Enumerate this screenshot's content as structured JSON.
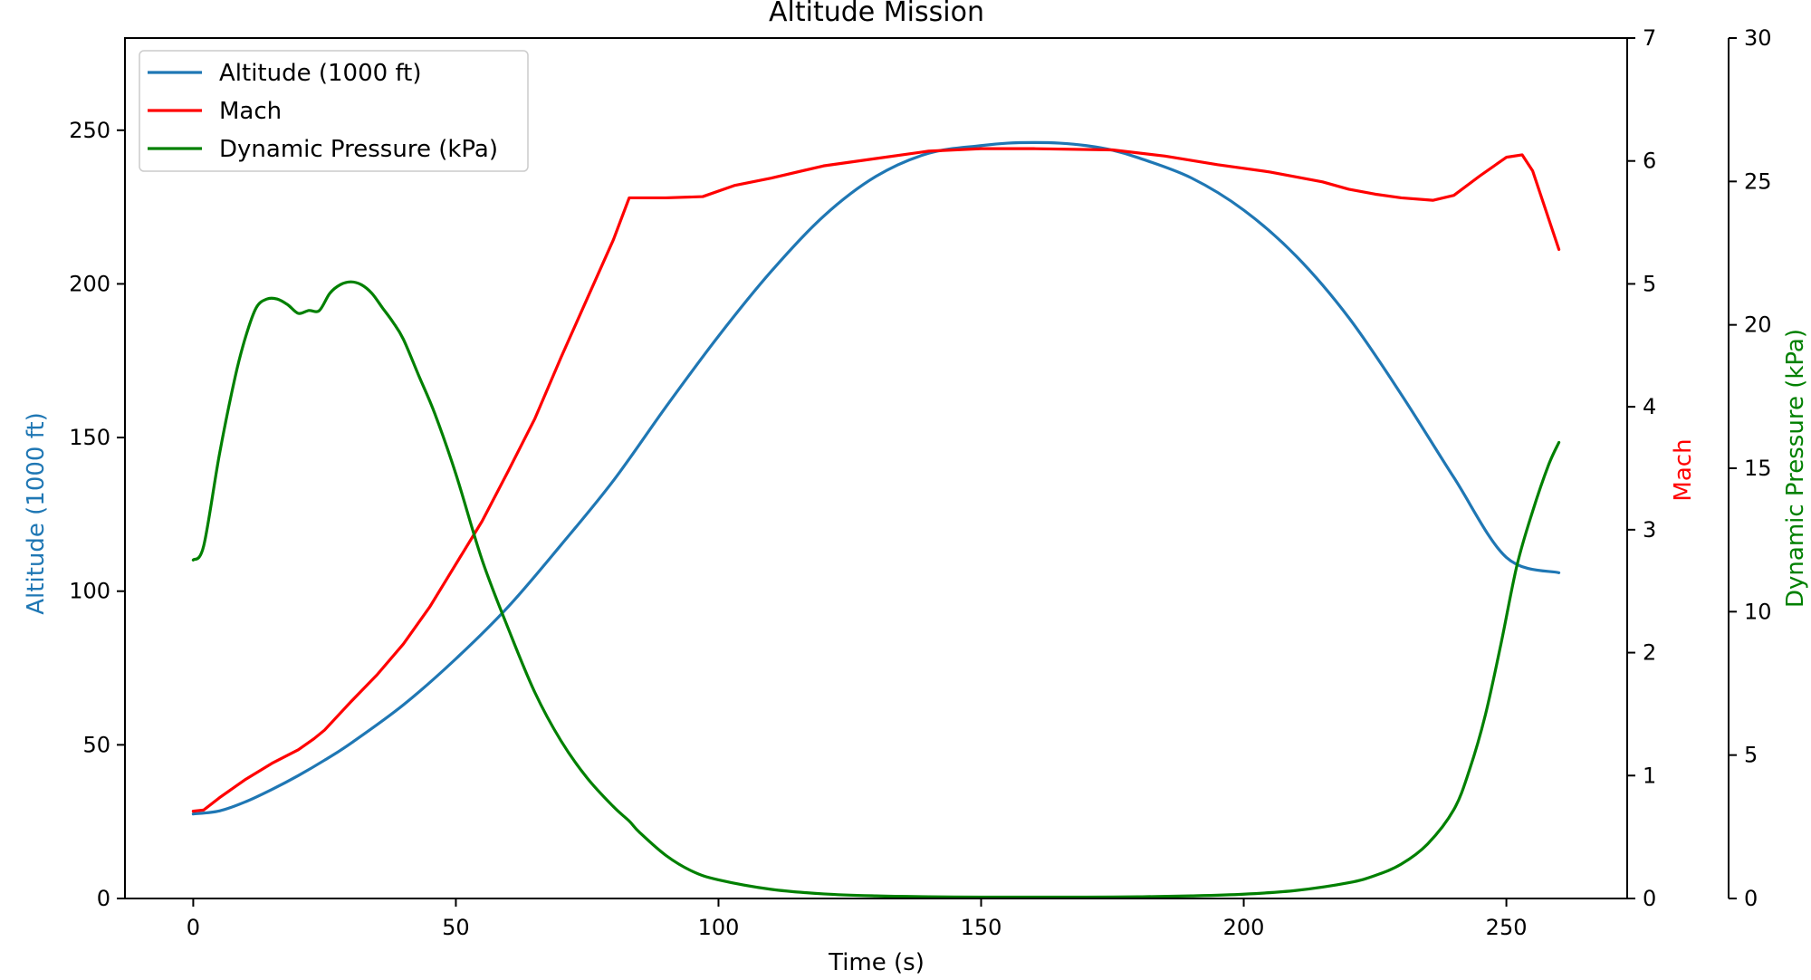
{
  "chart_data": {
    "type": "line",
    "title": "Altitude Mission",
    "xlabel": "Time (s)",
    "xlim": [
      -13,
      273
    ],
    "xticks": [
      0,
      50,
      100,
      150,
      200,
      250
    ],
    "axes": {
      "left": {
        "label": "Altitude (1000 ft)",
        "color": "#1f77b4",
        "ylim": [
          0,
          280
        ],
        "ticks": [
          0,
          50,
          100,
          150,
          200,
          250
        ]
      },
      "right": {
        "label": "Mach",
        "color": "#ff0000",
        "ylim": [
          0,
          7
        ],
        "ticks": [
          0,
          1,
          2,
          3,
          4,
          5,
          6,
          7
        ]
      },
      "right_outer": {
        "label": "Dynamic Pressure (kPa)",
        "color": "#008000",
        "ylim": [
          0,
          30
        ],
        "ticks": [
          0,
          5,
          10,
          15,
          20,
          25,
          30
        ]
      }
    },
    "legend": {
      "placement": "top-left"
    },
    "series": [
      {
        "name": "Altitude (1000 ft)",
        "axis": "left",
        "color": "#1f77b4",
        "x": [
          0,
          5,
          10,
          15,
          20,
          25,
          30,
          40,
          50,
          60,
          70,
          80,
          90,
          100,
          110,
          120,
          130,
          140,
          150,
          155,
          160,
          165,
          170,
          175,
          180,
          190,
          200,
          210,
          220,
          230,
          240,
          250,
          260
        ],
        "y": [
          27.5,
          28.5,
          31.5,
          35.5,
          40,
          45,
          50.5,
          63,
          78,
          95,
          115,
          136,
          160,
          183,
          204,
          222,
          235,
          242.5,
          245,
          245.8,
          246,
          245.8,
          245,
          243.5,
          241,
          234.5,
          224,
          209,
          189,
          164,
          137,
          111,
          106
        ]
      },
      {
        "name": "Mach",
        "axis": "right",
        "color": "#ff0000",
        "x": [
          0,
          2,
          5,
          10,
          15,
          20,
          23,
          25,
          30,
          35,
          40,
          45,
          50,
          55,
          60,
          65,
          70,
          75,
          80,
          83,
          90,
          97,
          103,
          110,
          120,
          130,
          140,
          150,
          160,
          175,
          185,
          195,
          205,
          215,
          220,
          225,
          230,
          236,
          240,
          245,
          250,
          253,
          255,
          260
        ],
        "y": [
          0.71,
          0.72,
          0.82,
          0.97,
          1.1,
          1.21,
          1.3,
          1.37,
          1.6,
          1.82,
          2.07,
          2.37,
          2.72,
          3.07,
          3.48,
          3.9,
          4.4,
          4.88,
          5.36,
          5.7,
          5.7,
          5.71,
          5.8,
          5.86,
          5.96,
          6.02,
          6.08,
          6.1,
          6.1,
          6.09,
          6.04,
          5.97,
          5.91,
          5.83,
          5.77,
          5.73,
          5.7,
          5.68,
          5.72,
          5.88,
          6.03,
          6.05,
          5.92,
          5.28
        ]
      },
      {
        "name": "Dynamic Pressure (kPa)",
        "axis": "right_outer",
        "color": "#008000",
        "x": [
          0,
          2,
          5,
          8,
          10,
          12,
          14,
          16,
          18,
          20,
          22,
          24,
          26,
          28,
          30,
          32,
          34,
          36,
          38,
          40,
          43,
          46,
          50,
          55,
          60,
          65,
          70,
          75,
          80,
          83,
          85,
          90,
          95,
          100,
          110,
          120,
          130,
          140,
          150,
          160,
          170,
          180,
          190,
          200,
          210,
          220,
          225,
          230,
          235,
          240,
          243,
          246,
          249,
          252,
          255,
          258,
          260
        ],
        "y": [
          11.8,
          12.3,
          15.5,
          18.2,
          19.6,
          20.6,
          20.9,
          20.9,
          20.7,
          20.4,
          20.5,
          20.5,
          21.1,
          21.4,
          21.5,
          21.4,
          21.1,
          20.6,
          20.1,
          19.5,
          18.2,
          16.9,
          14.8,
          11.8,
          9.4,
          7.2,
          5.5,
          4.2,
          3.2,
          2.7,
          2.3,
          1.5,
          0.95,
          0.65,
          0.32,
          0.16,
          0.09,
          0.06,
          0.05,
          0.05,
          0.05,
          0.06,
          0.09,
          0.15,
          0.28,
          0.55,
          0.8,
          1.2,
          1.9,
          3.1,
          4.5,
          6.4,
          8.9,
          11.6,
          13.5,
          15.1,
          15.9
        ]
      }
    ]
  }
}
